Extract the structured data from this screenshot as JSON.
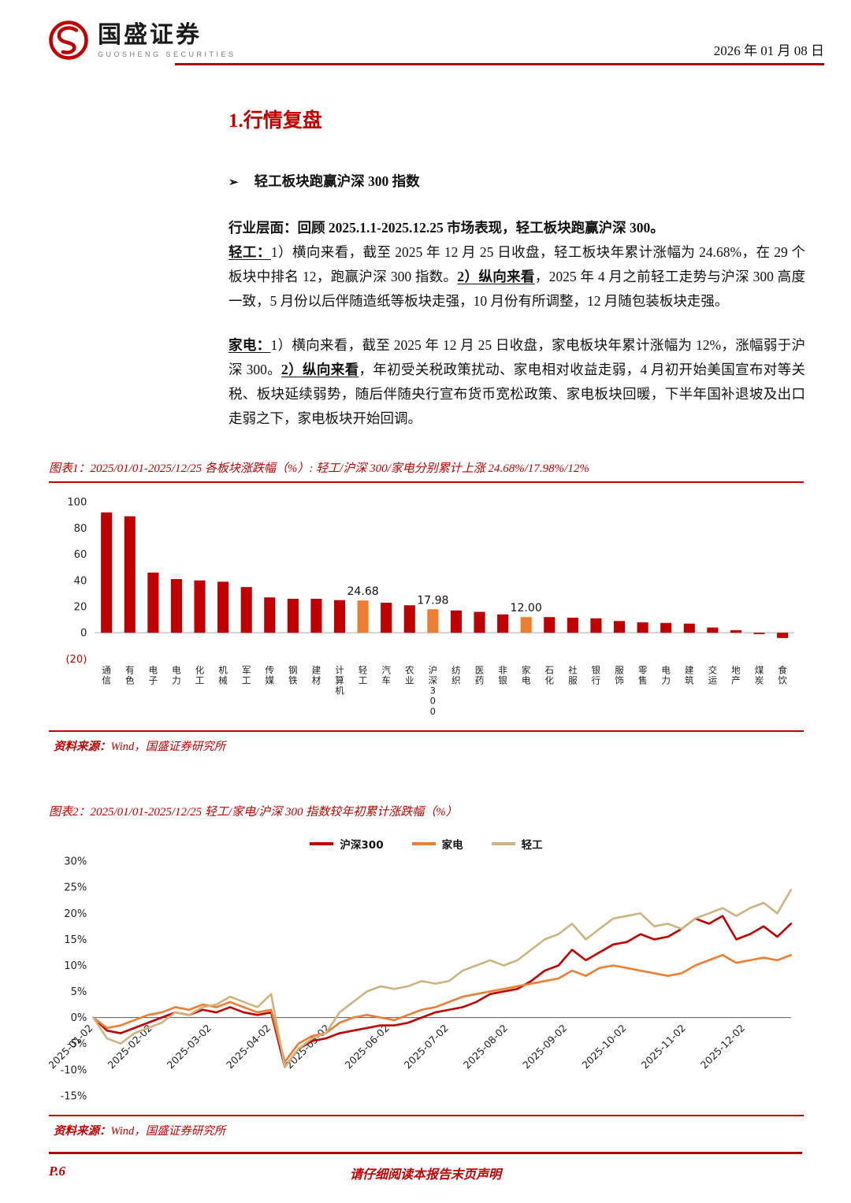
{
  "header": {
    "brand_name": "国盛证券",
    "brand_sub": "GUOSHENG SECURITIES",
    "date": "2026 年 01 月 08 日"
  },
  "section": {
    "title": "1.行情复盘",
    "bullet_marker": "➢",
    "bullet_text": "轻工板块跑赢沪深 300 指数"
  },
  "content": {
    "lead": "行业层面：回顾 2025.1.1-2025.12.25 市场表现，轻工板块跑赢沪深 300。",
    "light": [
      "轻工：",
      "1）横向来看，截至 2025 年 12 月 25 日收盘，轻工板块年累计涨幅为 24.68%，在 29 个板块中排名 12，跑赢沪深 300 指数。",
      "2）纵向来看",
      "，2025 年 4 月之前轻工走势与沪深 300 高度一致，5 月份以后伴随造纸等板块走强，10 月份有所调整，12 月随包装板块走强。"
    ],
    "appliance": [
      "家电：",
      "1）横向来看，截至 2025 年 12 月 25 日收盘，家电板块年累计涨幅为 12%，涨幅弱于沪深 300。",
      "2）纵向来看",
      "，年初受关税政策扰动、家电相对收益走弱，4 月初开始美国宣布对等关税、板块延续弱势，随后伴随央行宣布货币宽松政策、家电板块回暖，下半年国补退坡及出口走弱之下，家电板块开始回调。"
    ]
  },
  "chart_data": [
    {
      "type": "bar",
      "caption": "图表1：2025/01/01-2025/12/25 各板块涨跌幅（%）: 轻工/沪深 300/家电分别累计上涨 24.68%/17.98%/12%",
      "categories": [
        "通信",
        "有色",
        "电子",
        "电力",
        "化工",
        "机械",
        "军工",
        "传媒",
        "钢铁",
        "建材",
        "计算机",
        "轻工",
        "汽车",
        "农业",
        "沪深300",
        "纺织",
        "医药",
        "非银",
        "家电",
        "石化",
        "社服",
        "银行",
        "服饰",
        "零售",
        "电力",
        "建筑",
        "交运",
        "地产",
        "煤炭",
        "食饮"
      ],
      "values": [
        92,
        89,
        46,
        41,
        40,
        39,
        35,
        27,
        26,
        26,
        25,
        24.68,
        23,
        21,
        17.98,
        17,
        16,
        14,
        12,
        12,
        11.5,
        11,
        9,
        8,
        7.5,
        7,
        4,
        2,
        -1,
        -4
      ],
      "highlight_indices": [
        11,
        14,
        18
      ],
      "data_labels": {
        "11": "24.68",
        "14": "17.98",
        "18": "12.00"
      },
      "ylim": [
        -20,
        100
      ],
      "yticks": [
        100,
        80,
        60,
        40,
        20,
        0,
        -20
      ],
      "colors": {
        "bar": "#c00000",
        "highlight": "#ed7d31"
      },
      "source_label": "资料来源：",
      "source_value": "Wind，国盛证券研究所"
    },
    {
      "type": "line",
      "caption": "图表2：2025/01/01-2025/12/25 轻工/家电/沪深 300 指数较年初累计涨跌幅（%）",
      "x_labels": [
        "2025-01-02",
        "2025-02-02",
        "2025-03-02",
        "2025-04-02",
        "2025-05-02",
        "2025-06-02",
        "2025-07-02",
        "2025-08-02",
        "2025-09-02",
        "2025-10-02",
        "2025-11-02",
        "2025-12-02"
      ],
      "ylim": [
        -15,
        30
      ],
      "ytick_step": 5,
      "series": [
        {
          "name": "沪深300",
          "color": "#c00000",
          "values": [
            0,
            -2.5,
            -3,
            -2,
            -1,
            0,
            1,
            0.5,
            1.5,
            1,
            2,
            1,
            0.5,
            1,
            -9.5,
            -6,
            -4.5,
            -4,
            -3,
            -2.5,
            -2,
            -1.5,
            -1.5,
            -1,
            0,
            1,
            1.5,
            2,
            3,
            4.5,
            5,
            5.5,
            7,
            9,
            10,
            13,
            11,
            12.5,
            14,
            14.5,
            16,
            15,
            15.5,
            17,
            19,
            18,
            19.5,
            15,
            16,
            17.5,
            15.5,
            18
          ]
        },
        {
          "name": "家电",
          "color": "#ed7d31",
          "values": [
            0,
            -2,
            -1.5,
            -0.5,
            0.5,
            1,
            2,
            1.5,
            2.5,
            2,
            3,
            2,
            1,
            1.5,
            -8.5,
            -5,
            -3.5,
            -3,
            -1,
            0,
            0.5,
            0,
            -0.5,
            0.5,
            1.5,
            2,
            3,
            4,
            4.5,
            5,
            5.5,
            6,
            6.5,
            7,
            7.5,
            9,
            8,
            9.5,
            10,
            9.5,
            9,
            8.5,
            8,
            8.5,
            10,
            11,
            12,
            10.5,
            11,
            11.5,
            11,
            12
          ]
        },
        {
          "name": "轻工",
          "color": "#cdb380",
          "values": [
            0,
            -4,
            -5,
            -3,
            -2,
            -1,
            1,
            0.5,
            2,
            2.5,
            4,
            3,
            2,
            4.5,
            -9.5,
            -6,
            -4,
            -3,
            1,
            3,
            5,
            6,
            5.5,
            6,
            7,
            6.5,
            7,
            9,
            10,
            11,
            10,
            11,
            13,
            15,
            16,
            18,
            15,
            17,
            19,
            19.5,
            20,
            17.5,
            18,
            17,
            19,
            20,
            21,
            19.5,
            21,
            22,
            20,
            24.5
          ]
        }
      ],
      "source_label": "资料来源：",
      "source_value": "Wind，国盛证券研究所"
    }
  ],
  "footer": {
    "page_number": "P.6",
    "disclaimer": "请仔细阅读本报告末页声明"
  }
}
